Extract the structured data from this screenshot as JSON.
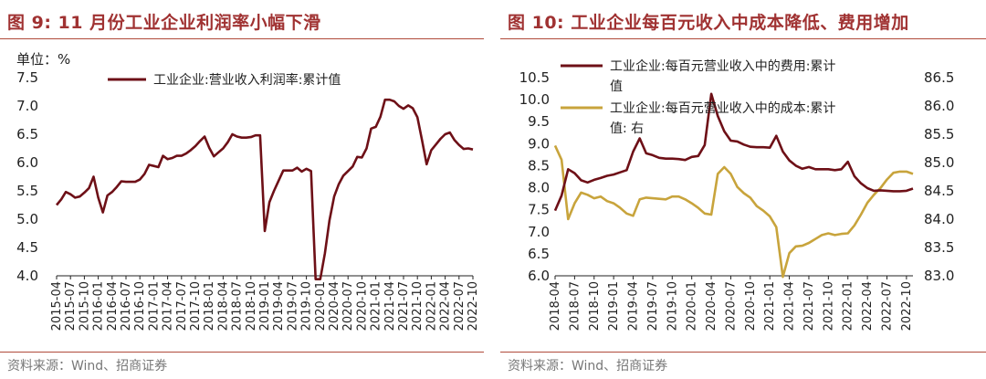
{
  "colors": {
    "title": "#A03232",
    "rule": "#B04A3A",
    "dark": "#6E1017",
    "gold": "#C8A43C",
    "source": "#777777"
  },
  "left_panel": {
    "title": "图 9:  11 月份工业企业利润率小幅下滑",
    "source": "资料来源：Wind、招商证券"
  },
  "right_panel": {
    "title": "图 10:  工业企业每百元收入中成本降低、费用增加",
    "source": "资料来源：Wind、招商证券"
  },
  "chart_data": [
    {
      "type": "line",
      "unit_label": "单位：%",
      "ylim": [
        4.0,
        7.5
      ],
      "yticks": [
        "4.0",
        "4.5",
        "5.0",
        "5.5",
        "6.0",
        "6.5",
        "7.0",
        "7.5"
      ],
      "xtick_labels": [
        "2015-04",
        "2015-07",
        "2015-10",
        "2016-01",
        "2016-04",
        "2016-07",
        "2016-10",
        "2017-01",
        "2017-04",
        "2017-07",
        "2017-10",
        "2018-01",
        "2018-04",
        "2018-07",
        "2018-10",
        "2019-01",
        "2019-04",
        "2019-07",
        "2019-10",
        "2020-01",
        "2020-04",
        "2020-07",
        "2020-10",
        "2021-01",
        "2021-04",
        "2021-07",
        "2021-10",
        "2022-01",
        "2022-04",
        "2022-07",
        "2022-10"
      ],
      "series": [
        {
          "name": "工业企业:营业收入利润率:累计值",
          "values": [
            5.25,
            5.35,
            5.48,
            5.44,
            5.38,
            5.4,
            5.47,
            5.55,
            5.75,
            5.38,
            5.12,
            5.42,
            5.48,
            5.57,
            5.67,
            5.66,
            5.66,
            5.66,
            5.7,
            5.8,
            5.96,
            5.94,
            5.92,
            6.12,
            6.06,
            6.08,
            6.12,
            6.12,
            6.16,
            6.22,
            6.29,
            6.38,
            6.46,
            6.26,
            6.11,
            6.18,
            6.25,
            6.36,
            6.5,
            6.46,
            6.44,
            6.44,
            6.45,
            6.48,
            6.48,
            4.79,
            5.3,
            5.5,
            5.68,
            5.86,
            5.86,
            5.86,
            5.91,
            5.84,
            5.89,
            5.85,
            3.94,
            3.94,
            4.4,
            4.98,
            5.4,
            5.62,
            5.77,
            5.85,
            5.93,
            6.1,
            6.09,
            6.25,
            6.6,
            6.63,
            6.81,
            7.11,
            7.11,
            7.08,
            7.0,
            6.95,
            7.01,
            6.96,
            6.8,
            6.39,
            5.97,
            6.22,
            6.32,
            6.42,
            6.5,
            6.53,
            6.4,
            6.31,
            6.24,
            6.25,
            6.23
          ]
        }
      ]
    },
    {
      "type": "line",
      "dual_axis": true,
      "ylim_left": [
        6.0,
        10.5
      ],
      "yticks_left": [
        "6.0",
        "6.5",
        "7.0",
        "7.5",
        "8.0",
        "8.5",
        "9.0",
        "9.5",
        "10.0",
        "10.5"
      ],
      "ylim_right": [
        83.0,
        86.5
      ],
      "yticks_right": [
        "83.0",
        "83.5",
        "84.0",
        "84.5",
        "85.0",
        "85.5",
        "86.0",
        "86.5"
      ],
      "xtick_labels": [
        "2018-04",
        "2018-07",
        "2018-10",
        "2019-01",
        "2019-04",
        "2019-07",
        "2019-10",
        "2020-01",
        "2020-04",
        "2020-07",
        "2020-10",
        "2021-01",
        "2021-04",
        "2021-07",
        "2021-10",
        "2022-01",
        "2022-04",
        "2022-07",
        "2022-10"
      ],
      "series": [
        {
          "name": "工业企业:每百元营业收入中的费用:累计值",
          "axis": "left",
          "values": [
            7.48,
            7.82,
            8.42,
            8.33,
            8.17,
            8.12,
            8.18,
            8.22,
            8.27,
            8.3,
            8.35,
            8.4,
            8.82,
            9.12,
            8.78,
            8.74,
            8.68,
            8.66,
            8.66,
            8.65,
            8.63,
            8.7,
            8.72,
            8.97,
            10.13,
            9.63,
            9.28,
            9.07,
            9.05,
            8.98,
            8.93,
            8.92,
            8.92,
            8.91,
            9.18,
            8.82,
            8.62,
            8.5,
            8.43,
            8.47,
            8.42,
            8.42,
            8.42,
            8.4,
            8.42,
            8.59,
            8.26,
            8.1,
            7.99,
            7.93,
            7.94,
            7.93,
            7.92,
            7.92,
            7.93,
            7.98
          ]
        },
        {
          "name": "工业企业:每百元营业收入中的成本:累计值: 右",
          "axis": "right",
          "values": [
            85.3,
            85.05,
            84.0,
            84.28,
            84.47,
            84.43,
            84.37,
            84.4,
            84.32,
            84.28,
            84.2,
            84.1,
            84.06,
            84.35,
            84.38,
            84.37,
            84.36,
            84.35,
            84.4,
            84.4,
            84.35,
            84.28,
            84.2,
            84.1,
            84.08,
            84.8,
            84.92,
            84.8,
            84.57,
            84.46,
            84.38,
            84.23,
            84.15,
            84.05,
            83.86,
            82.98,
            83.4,
            83.52,
            83.53,
            83.58,
            83.65,
            83.72,
            83.75,
            83.72,
            83.74,
            83.75,
            83.89,
            84.08,
            84.29,
            84.43,
            84.55,
            84.7,
            84.82,
            84.84,
            84.84,
            84.8
          ]
        }
      ]
    }
  ]
}
